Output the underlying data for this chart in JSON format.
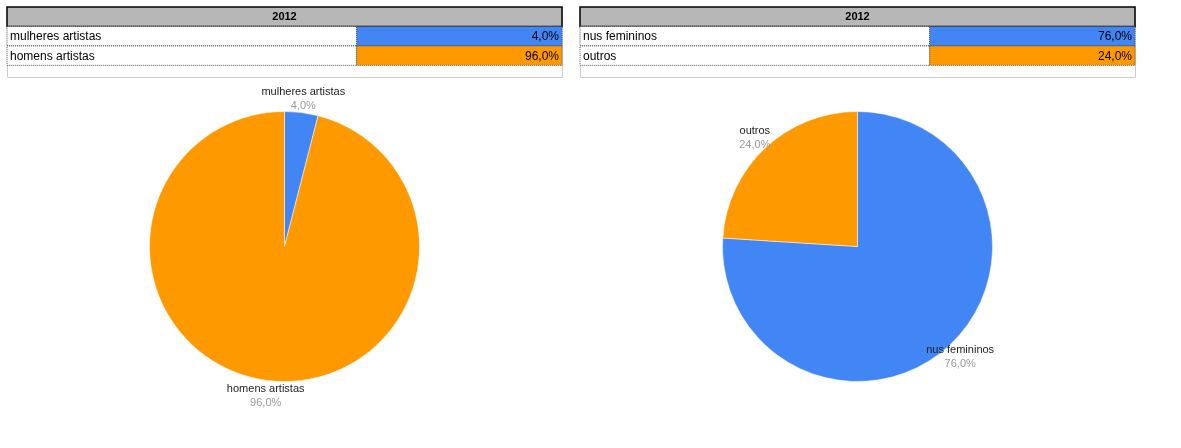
{
  "chart_data": [
    {
      "type": "pie",
      "title": "2012",
      "categories": [
        "mulheres artistas",
        "homens artistas"
      ],
      "values": [
        4,
        96
      ],
      "colors": [
        "#4285f4",
        "#ff9900"
      ],
      "value_labels": [
        "4,0%",
        "96,0%"
      ]
    },
    {
      "type": "pie",
      "title": "2012",
      "categories": [
        "nus femininos",
        "outros"
      ],
      "values": [
        76,
        24
      ],
      "colors": [
        "#4285f4",
        "#ff9900"
      ],
      "value_labels": [
        "76,0%",
        "24,0%"
      ]
    }
  ]
}
